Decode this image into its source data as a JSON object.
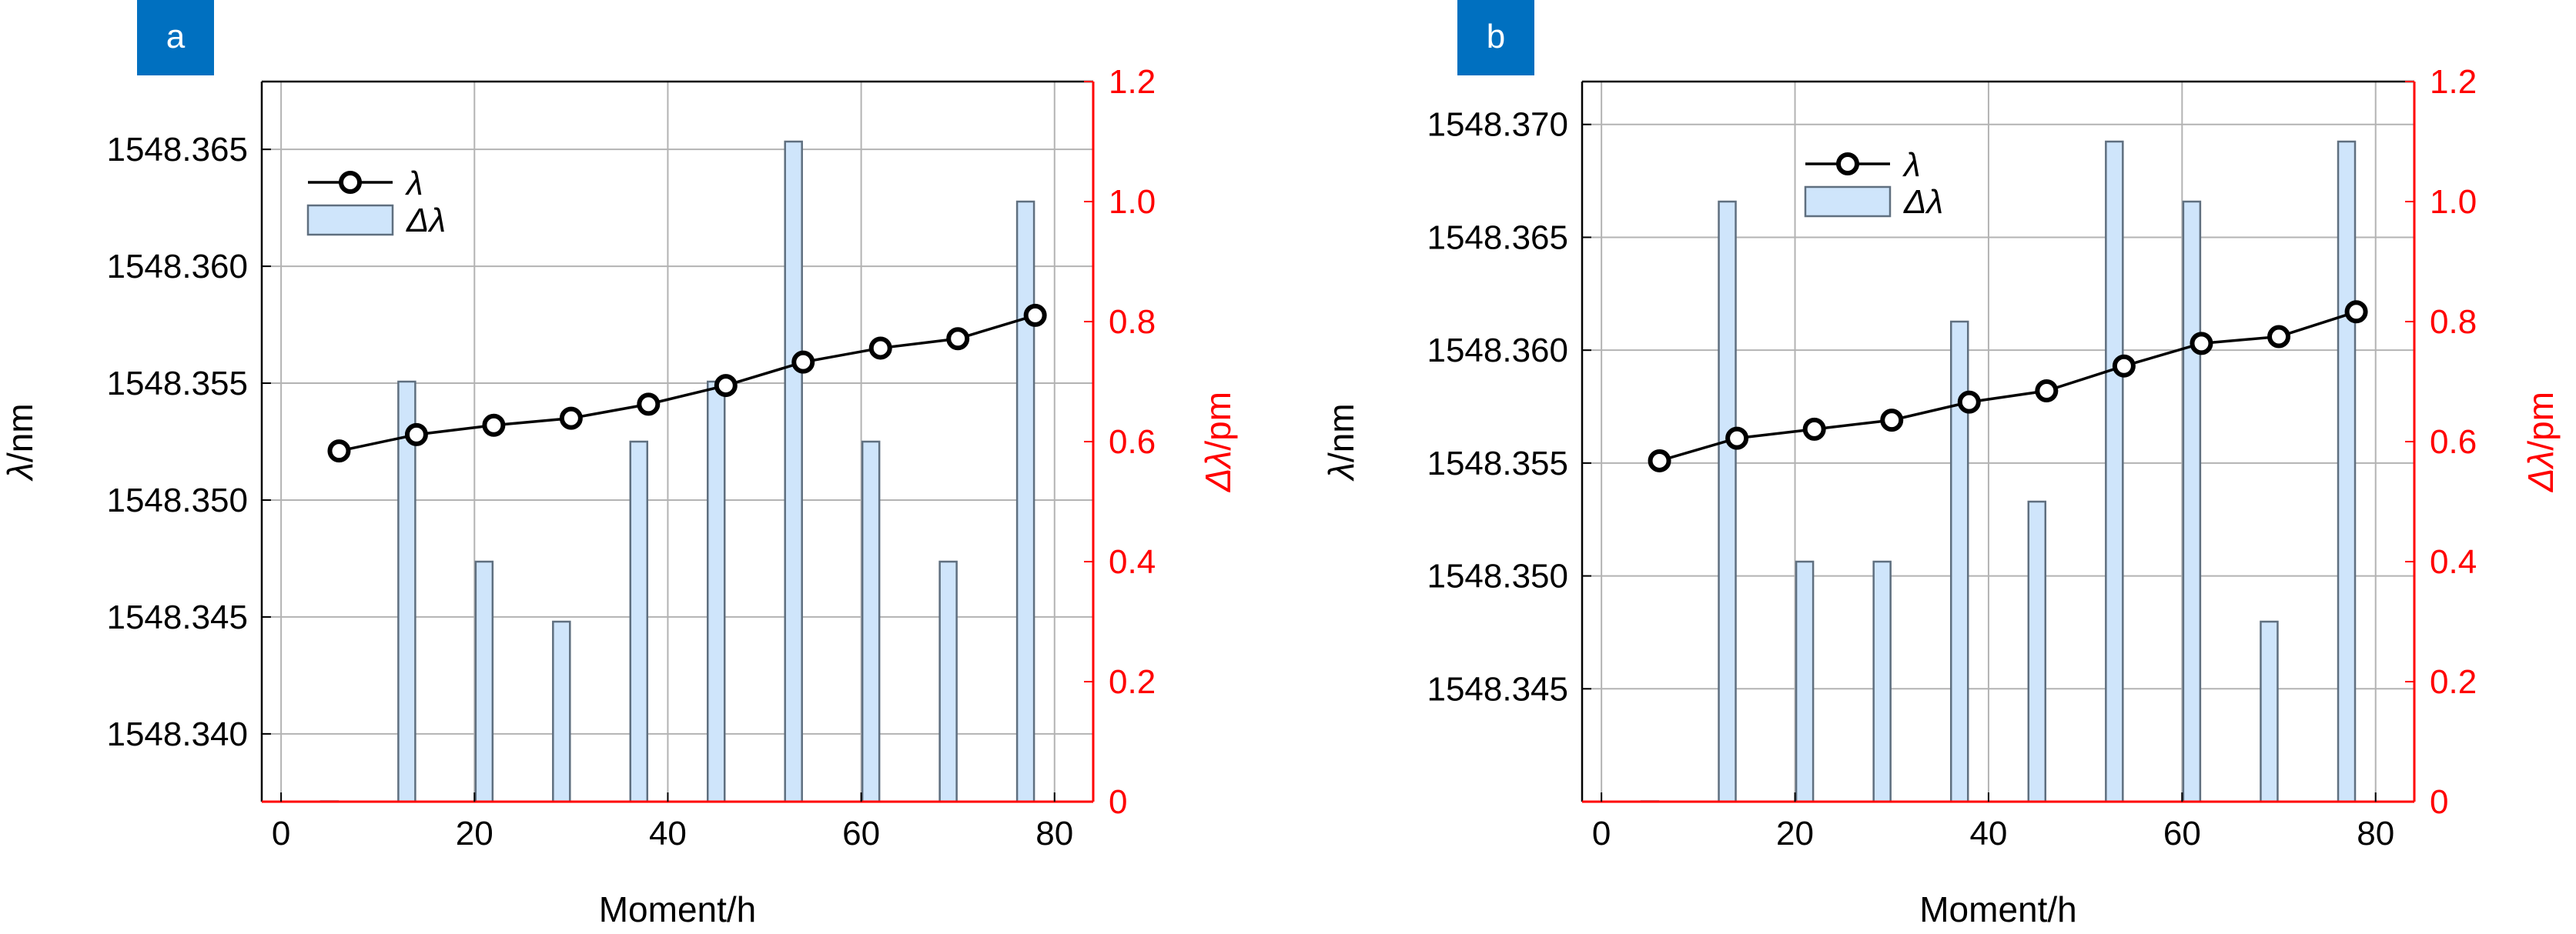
{
  "colors": {
    "line": "#000000",
    "bar_fill": "#cfe5fb",
    "bar_edge": "#5f6f7f",
    "right_axis": "#ff0000",
    "grid": "#b3b3b3",
    "badge": "#0070c0"
  },
  "chart_data": [
    {
      "panel_label": "a",
      "type": "bar+line",
      "xlabel": "Moment/h",
      "ylabel_left_var": "λ",
      "ylabel_left_unit": "/nm",
      "ylabel_right_var": "Δλ",
      "ylabel_right_unit": "/pm",
      "xlim": [
        -2,
        84
      ],
      "ylim_left": [
        1548.3371,
        1548.3679
      ],
      "ylim_right": [
        0,
        1.2
      ],
      "xticks": [
        0,
        20,
        40,
        60,
        80
      ],
      "yticks_left": [
        1548.34,
        1548.345,
        1548.35,
        1548.355,
        1548.36,
        1548.365
      ],
      "yticks_left_labels": [
        "1548.340",
        "1548.345",
        "1548.350",
        "1548.355",
        "1548.360",
        "1548.365"
      ],
      "yticks_right": [
        0,
        0.2,
        0.4,
        0.6,
        0.8,
        1.0,
        1.2
      ],
      "yticks_right_labels": [
        "0",
        "0.2",
        "0.4",
        "0.6",
        "0.8",
        "1.0",
        "1.2"
      ],
      "grid": true,
      "legend": {
        "position": "top-left",
        "line_label": "λ",
        "bar_label": "Δλ"
      },
      "line_series": {
        "name": "λ",
        "x": [
          6,
          14,
          22,
          30,
          38,
          46,
          54,
          62,
          70,
          78
        ],
        "y": [
          1548.3521,
          1548.3528,
          1548.3532,
          1548.3535,
          1548.3541,
          1548.3549,
          1548.3559,
          1548.3565,
          1548.3569,
          1548.3579
        ]
      },
      "bar_series": {
        "name": "Δλ",
        "x": [
          5,
          13,
          21,
          29,
          37,
          45,
          53,
          61,
          69,
          77
        ],
        "values": [
          0,
          0.7,
          0.4,
          0.3,
          0.6,
          0.7,
          1.1,
          0.6,
          0.4,
          1.0
        ]
      }
    },
    {
      "panel_label": "b",
      "type": "bar+line",
      "xlabel": "Moment/h",
      "ylabel_left_var": "λ",
      "ylabel_left_unit": "/nm",
      "ylabel_right_var": "Δλ",
      "ylabel_right_unit": "/pm",
      "xlim": [
        -2,
        84
      ],
      "ylim_left": [
        1548.34,
        1548.3719
      ],
      "ylim_right": [
        0,
        1.2
      ],
      "xticks": [
        0,
        20,
        40,
        60,
        80
      ],
      "yticks_left": [
        1548.345,
        1548.35,
        1548.355,
        1548.36,
        1548.365,
        1548.37
      ],
      "yticks_left_labels": [
        "1548.345",
        "1548.350",
        "1548.355",
        "1548.360",
        "1548.365",
        "1548.370"
      ],
      "yticks_right": [
        0,
        0.2,
        0.4,
        0.6,
        0.8,
        1.0,
        1.2
      ],
      "yticks_right_labels": [
        "0",
        "0.2",
        "0.4",
        "0.6",
        "0.8",
        "1.0",
        "1.2"
      ],
      "grid": true,
      "legend": {
        "position": "top-center",
        "line_label": "λ",
        "bar_label": "Δλ"
      },
      "line_series": {
        "name": "λ",
        "x": [
          6,
          14,
          22,
          30,
          38,
          46,
          54,
          62,
          70,
          78
        ],
        "y": [
          1548.3551,
          1548.3561,
          1548.3565,
          1548.3569,
          1548.3577,
          1548.3582,
          1548.3593,
          1548.3603,
          1548.3606,
          1548.3617
        ]
      },
      "bar_series": {
        "name": "Δλ",
        "x": [
          5,
          13,
          21,
          29,
          37,
          45,
          53,
          61,
          69,
          77
        ],
        "values": [
          0,
          1.0,
          0.4,
          0.4,
          0.8,
          0.5,
          1.1,
          1.0,
          0.3,
          1.1
        ]
      }
    }
  ]
}
